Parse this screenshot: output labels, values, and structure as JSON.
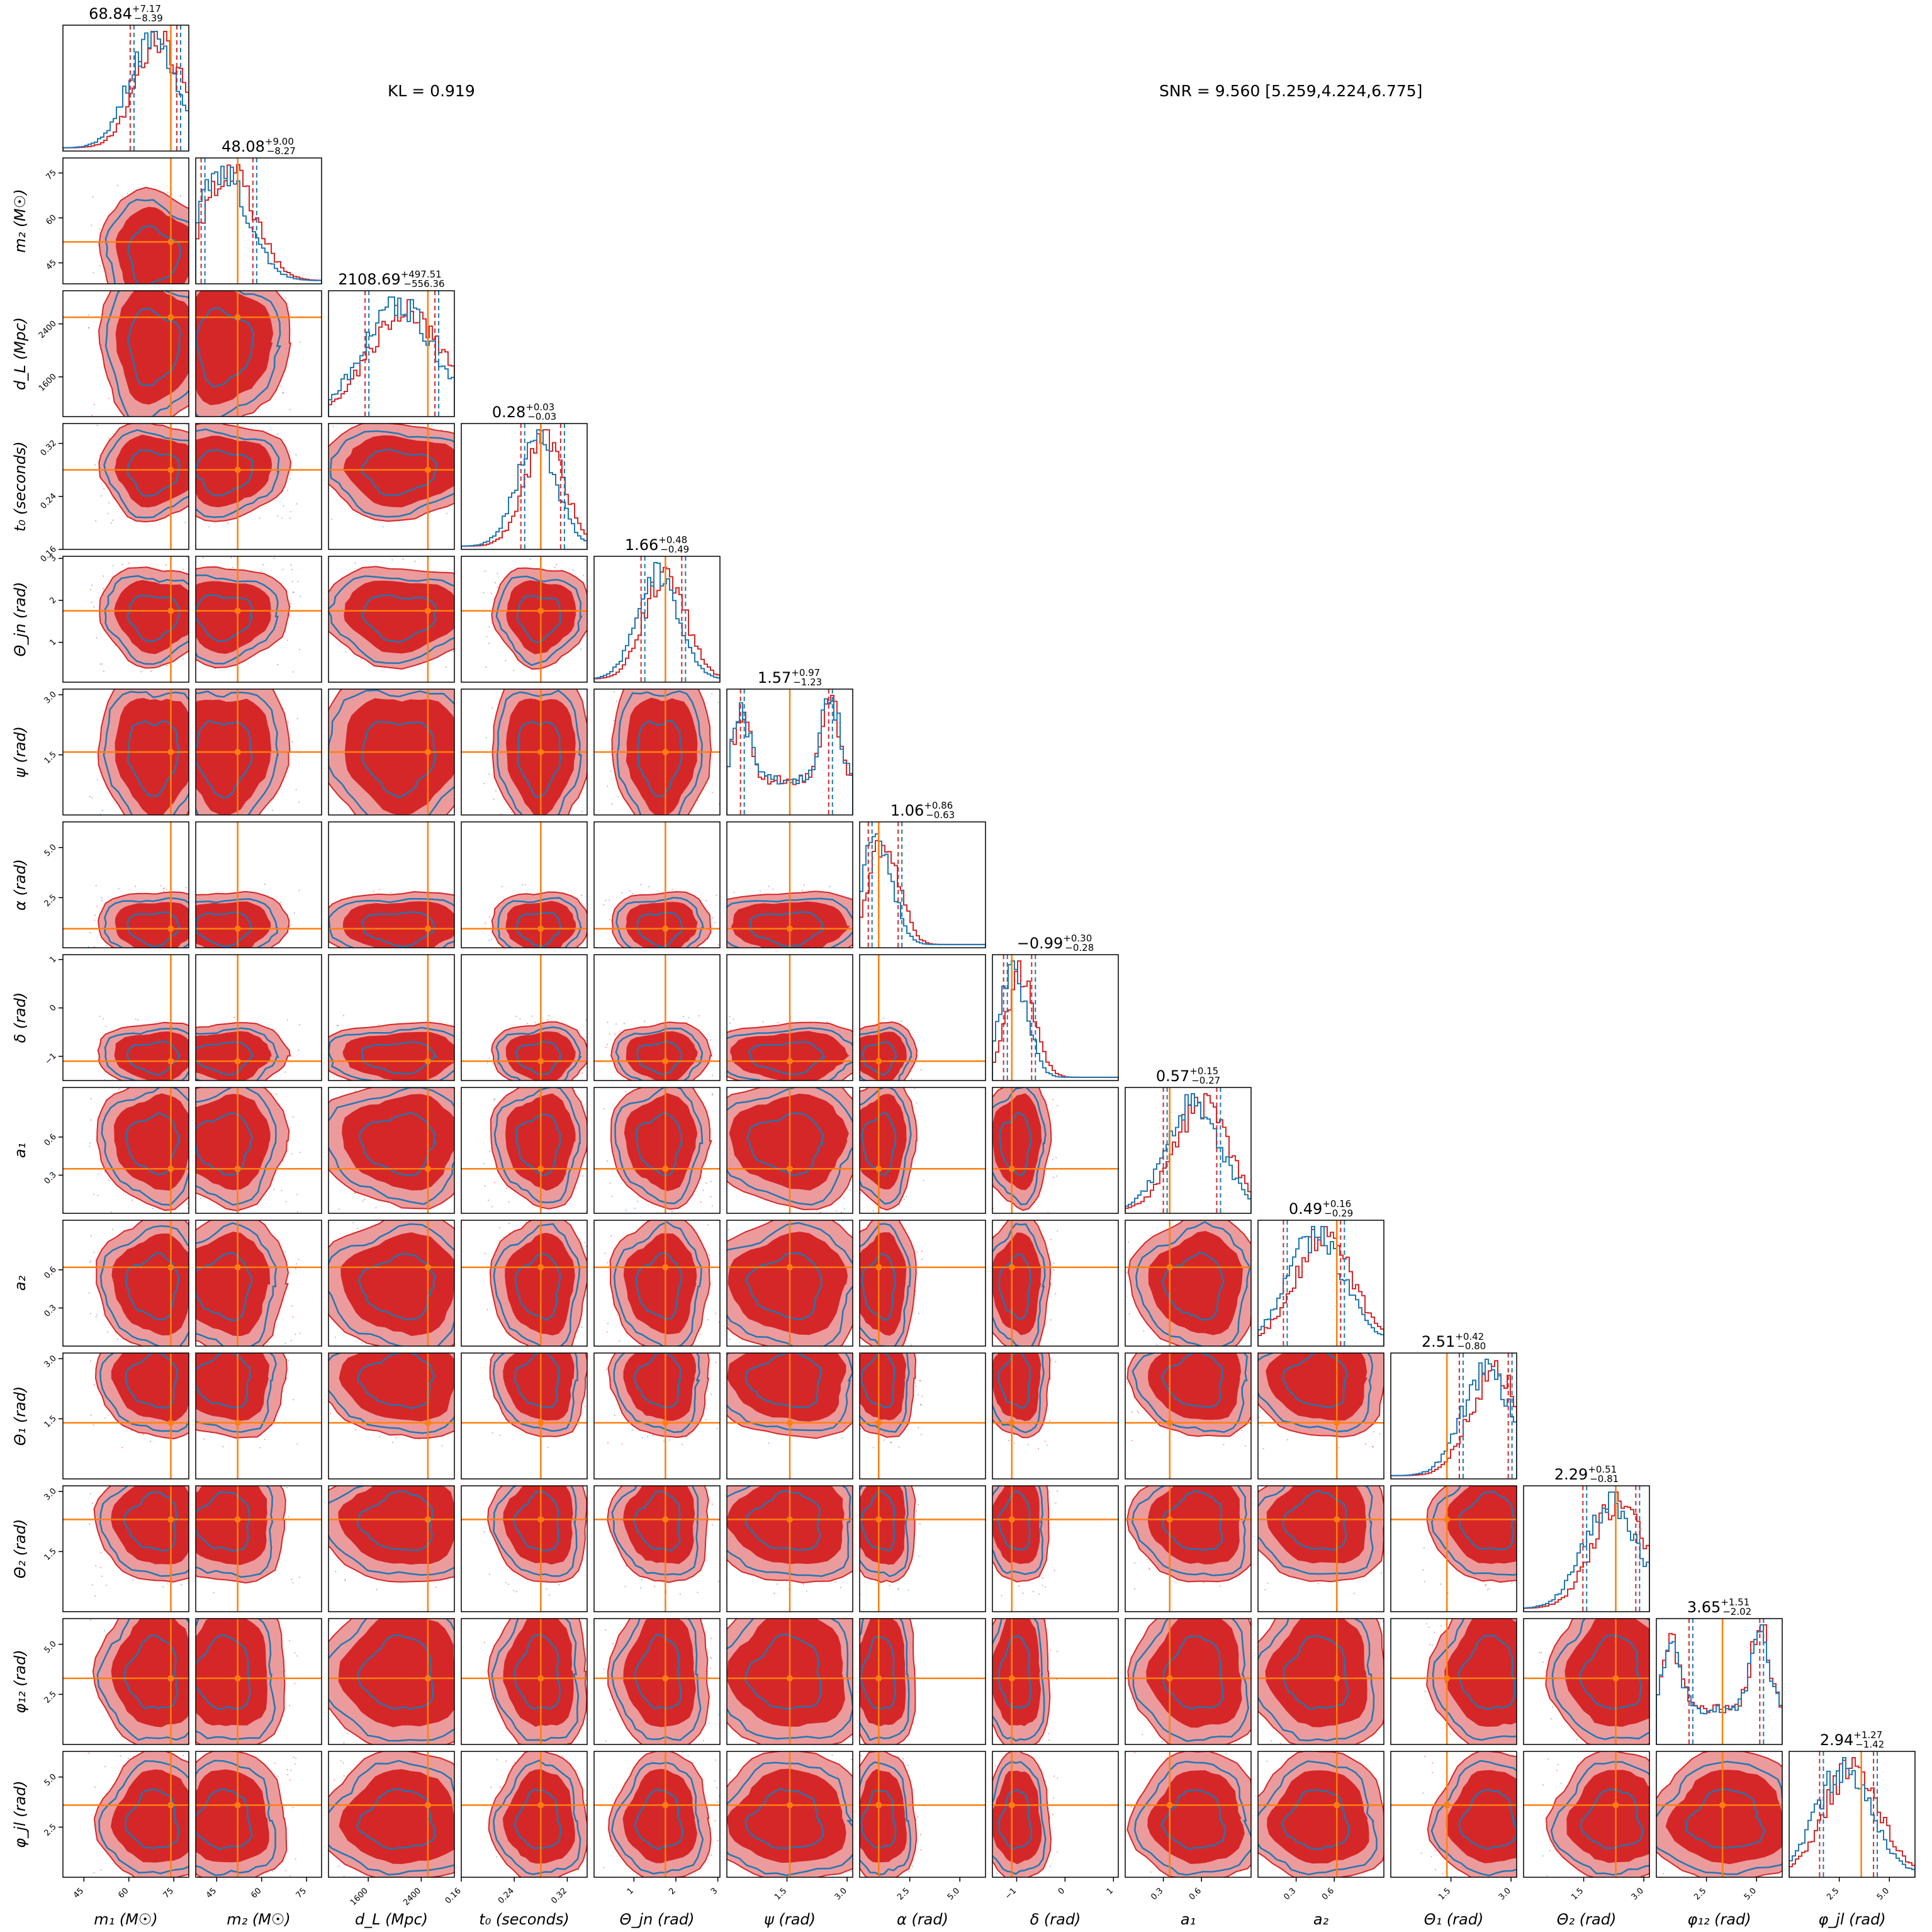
{
  "chart_data": {
    "type": "corner",
    "annotations": {
      "kl": "KL = 0.919",
      "snr": "SNR = 9.560 [5.259,4.224,6.775]"
    },
    "colors": {
      "posterior_a": "#d62728",
      "posterior_a_light": "#ec9b9c",
      "posterior_b": "#1f77b4",
      "injection": "#ff7f0e",
      "frame": "#000000"
    },
    "parameters": [
      {
        "label": "m₁ (M☉)",
        "range": [
          38,
          80
        ],
        "ticks": [
          45,
          60,
          75
        ],
        "tick_labels": [
          "45",
          "60",
          "75"
        ],
        "truth": 74,
        "median": 68.84,
        "plus": 7.17,
        "minus": 8.39,
        "title_main": "68.84",
        "title_sup": "+7.17",
        "title_sub": "−8.39"
      },
      {
        "label": "m₂ (M☉)",
        "range": [
          38,
          80
        ],
        "ticks": [
          45,
          60,
          75
        ],
        "tick_labels": [
          "45",
          "60",
          "75"
        ],
        "truth": 52,
        "median": 48.08,
        "plus": 9.0,
        "minus": 8.27,
        "title_main": "48.08",
        "title_sup": "+9.00",
        "title_sub": "−8.27"
      },
      {
        "label": "d_L (Mpc)",
        "range": [
          1000,
          2900
        ],
        "ticks": [
          1600,
          2400
        ],
        "tick_labels": [
          "1600",
          "2400"
        ],
        "truth": 2500,
        "median": 2108.69,
        "plus": 497.51,
        "minus": 556.36,
        "title_main": "2108.69",
        "title_sup": "+497.51",
        "title_sub": "−556.36"
      },
      {
        "label": "t₀ (seconds)",
        "range": [
          0.16,
          0.35
        ],
        "ticks": [
          0.16,
          0.24,
          0.32
        ],
        "tick_labels": [
          "0.16",
          "0.24",
          "0.32"
        ],
        "truth": 0.28,
        "median": 0.28,
        "plus": 0.03,
        "minus": 0.03,
        "title_main": "0.28",
        "title_sup": "+0.03",
        "title_sub": "−0.03"
      },
      {
        "label": "Θ_jn (rad)",
        "range": [
          0.05,
          3.05
        ],
        "ticks": [
          1,
          2,
          3
        ],
        "tick_labels": [
          "1",
          "2",
          "3"
        ],
        "truth": 1.75,
        "median": 1.66,
        "plus": 0.48,
        "minus": 0.49,
        "title_main": "1.66",
        "title_sup": "+0.48",
        "title_sub": "−0.49"
      },
      {
        "label": "ψ (rad)",
        "range": [
          0,
          3.14
        ],
        "ticks": [
          1.5,
          3.0
        ],
        "tick_labels": [
          "1.5",
          "3.0"
        ],
        "truth": 1.57,
        "median": 1.57,
        "plus": 0.97,
        "minus": 1.23,
        "title_main": "1.57",
        "title_sup": "+0.97",
        "title_sub": "−1.23"
      },
      {
        "label": "α (rad)",
        "range": [
          0,
          6.28
        ],
        "ticks": [
          2.5,
          5.0
        ],
        "tick_labels": [
          "2.5",
          "5.0"
        ],
        "truth": 0.95,
        "median": 1.06,
        "plus": 0.86,
        "minus": 0.63,
        "title_main": "1.06",
        "title_sup": "+0.86",
        "title_sub": "−0.63"
      },
      {
        "label": "δ (rad)",
        "range": [
          -1.5,
          1.1
        ],
        "ticks": [
          -1,
          0,
          1
        ],
        "tick_labels": [
          "−1",
          "0",
          "1"
        ],
        "truth": -1.1,
        "median": -0.99,
        "plus": 0.3,
        "minus": 0.28,
        "title_main": "−0.99",
        "title_sup": "+0.30",
        "title_sub": "−0.28"
      },
      {
        "label": "a₁",
        "range": [
          0,
          0.99
        ],
        "ticks": [
          0.3,
          0.6
        ],
        "tick_labels": [
          "0.3",
          "0.6"
        ],
        "truth": 0.35,
        "median": 0.57,
        "plus": 0.15,
        "minus": 0.27,
        "title_main": "0.57",
        "title_sup": "+0.15",
        "title_sub": "−0.27"
      },
      {
        "label": "a₂",
        "range": [
          0,
          0.99
        ],
        "ticks": [
          0.3,
          0.6
        ],
        "tick_labels": [
          "0.3",
          "0.6"
        ],
        "truth": 0.62,
        "median": 0.49,
        "plus": 0.16,
        "minus": 0.29,
        "title_main": "0.49",
        "title_sup": "+0.16",
        "title_sub": "−0.29"
      },
      {
        "label": "Θ₁ (rad)",
        "range": [
          0,
          3.14
        ],
        "ticks": [
          1.5,
          3.0
        ],
        "tick_labels": [
          "1.5",
          "3.0"
        ],
        "truth": 1.4,
        "median": 2.51,
        "plus": 0.42,
        "minus": 0.8,
        "title_main": "2.51",
        "title_sup": "+0.42",
        "title_sub": "−0.80"
      },
      {
        "label": "Θ₂ (rad)",
        "range": [
          0,
          3.14
        ],
        "ticks": [
          1.5,
          3.0
        ],
        "tick_labels": [
          "1.5",
          "3.0"
        ],
        "truth": 2.3,
        "median": 2.29,
        "plus": 0.51,
        "minus": 0.81,
        "title_main": "2.29",
        "title_sup": "+0.51",
        "title_sub": "−0.81"
      },
      {
        "label": "φ₁₂ (rad)",
        "range": [
          0,
          6.28
        ],
        "ticks": [
          2.5,
          5.0
        ],
        "tick_labels": [
          "2.5",
          "5.0"
        ],
        "truth": 3.3,
        "median": 3.65,
        "plus": 1.51,
        "minus": 2.02,
        "title_main": "3.65",
        "title_sup": "+1.51",
        "title_sub": "−2.02"
      },
      {
        "label": "φ_jl (rad)",
        "range": [
          0,
          6.28
        ],
        "ticks": [
          2.5,
          5.0
        ],
        "tick_labels": [
          "2.5",
          "5.0"
        ],
        "truth": 3.6,
        "median": 2.94,
        "plus": 1.27,
        "minus": 1.42,
        "title_main": "2.94",
        "title_sup": "+1.27",
        "title_sub": "−1.42"
      }
    ]
  }
}
